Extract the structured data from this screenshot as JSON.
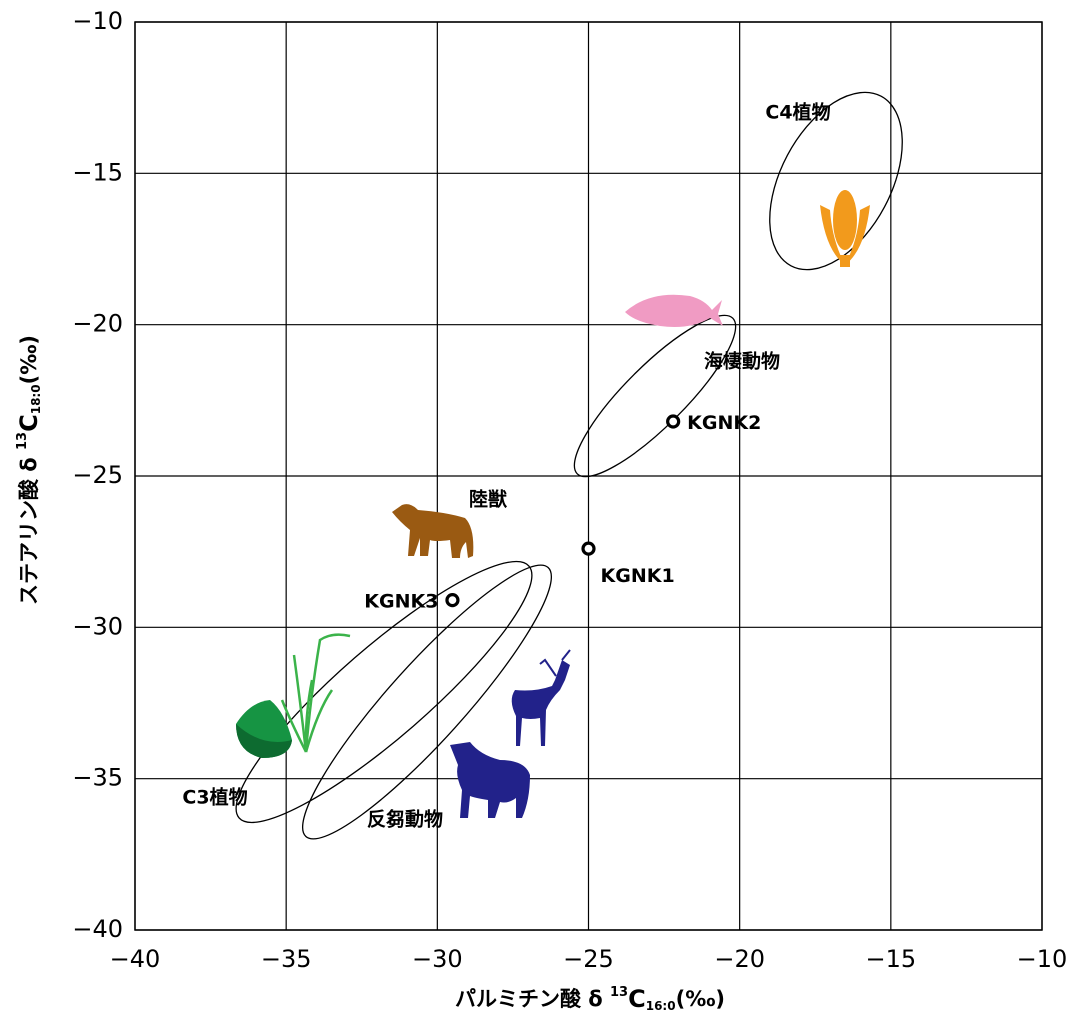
{
  "chart_data": {
    "type": "scatter",
    "x": [
      -25,
      -22.2,
      -29.5
    ],
    "values": [
      -27.4,
      -23.2,
      -29.1
    ],
    "point_labels": [
      "KGNK1",
      "KGNK2",
      "KGNK3"
    ],
    "annotations": [
      "C4植物",
      "海棲動物",
      "陸獣",
      "C3植物",
      "反芻動物"
    ],
    "xlabel": {
      "main": "パルミチン酸 δ ",
      "sup": "13",
      "base": "C",
      "sub": "16:0",
      "unit": "(‰)"
    },
    "ylabel": {
      "main": "ステアリン酸 δ ",
      "sup": "13",
      "base": "C",
      "sub": "18:0",
      "unit": "(‰)"
    },
    "xlim": [
      -40,
      -10
    ],
    "ylim": [
      -40,
      -10
    ],
    "xticks": [
      {
        "value": -40,
        "label": "−40"
      },
      {
        "value": -35,
        "label": "−35"
      },
      {
        "value": -30,
        "label": "−30"
      },
      {
        "value": -25,
        "label": "−25"
      },
      {
        "value": -20,
        "label": "−20"
      },
      {
        "value": -15,
        "label": "−15"
      },
      {
        "value": -10,
        "label": "−10"
      }
    ],
    "yticks": [
      {
        "value": -40,
        "label": "−40"
      },
      {
        "value": -35,
        "label": "−35"
      },
      {
        "value": -30,
        "label": "−30"
      },
      {
        "value": -25,
        "label": "−25"
      },
      {
        "value": -20,
        "label": "−20"
      },
      {
        "value": -15,
        "label": "−15"
      },
      {
        "value": -10,
        "label": "−10"
      }
    ],
    "grid": true
  }
}
